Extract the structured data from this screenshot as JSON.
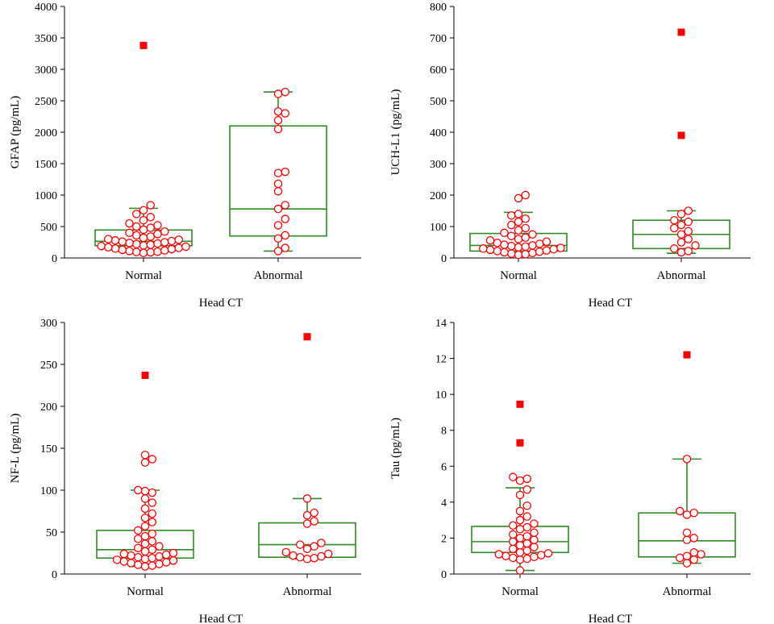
{
  "colors": {
    "box": "#2e8b22",
    "point": "#ff0000",
    "outlier": "#ff0000",
    "axis": "#000000"
  },
  "chart_data": [
    {
      "type": "box",
      "title": "",
      "xlabel": "Head CT",
      "ylabel": "GFAP (pg/mL)",
      "ylim": [
        0,
        4000
      ],
      "yticks": [
        0,
        500,
        1000,
        1500,
        2000,
        2500,
        3000,
        3500,
        4000
      ],
      "categories": [
        "Normal",
        "Abnormal"
      ],
      "series": [
        {
          "name": "Normal",
          "box": {
            "whisker_low": 80,
            "q1": 195,
            "median": 265,
            "q3": 445,
            "whisker_high": 790
          },
          "points": [
            80,
            90,
            95,
            100,
            110,
            120,
            130,
            140,
            150,
            160,
            170,
            180,
            190,
            200,
            210,
            220,
            230,
            240,
            250,
            260,
            270,
            280,
            290,
            300,
            320,
            340,
            360,
            380,
            400,
            420,
            450,
            480,
            500,
            520,
            550,
            600,
            650,
            700,
            760,
            840
          ],
          "outliers": [
            3380
          ]
        },
        {
          "name": "Abnormal",
          "box": {
            "whisker_low": 110,
            "q1": 350,
            "median": 780,
            "q3": 2100,
            "whisker_high": 2640
          },
          "points": [
            110,
            160,
            310,
            360,
            520,
            620,
            780,
            840,
            1060,
            1180,
            1350,
            1370,
            2050,
            2190,
            2300,
            2330,
            2610,
            2640
          ],
          "outliers": []
        }
      ]
    },
    {
      "type": "box",
      "title": "",
      "xlabel": "Head CT",
      "ylabel": "UCH-L1 (pg/mL)",
      "ylim": [
        0,
        800
      ],
      "yticks": [
        0,
        100,
        200,
        300,
        400,
        500,
        600,
        700,
        800
      ],
      "categories": [
        "Normal",
        "Abnormal"
      ],
      "series": [
        {
          "name": "Normal",
          "box": {
            "whisker_low": 10,
            "q1": 22,
            "median": 40,
            "q3": 78,
            "whisker_high": 145
          },
          "points": [
            10,
            12,
            14,
            16,
            18,
            20,
            22,
            24,
            26,
            28,
            30,
            32,
            34,
            36,
            38,
            40,
            42,
            45,
            48,
            52,
            56,
            60,
            65,
            70,
            75,
            80,
            88,
            95,
            105,
            115,
            125,
            135,
            140,
            190,
            200
          ],
          "outliers": []
        },
        {
          "name": "Abnormal",
          "box": {
            "whisker_low": 15,
            "q1": 30,
            "median": 75,
            "q3": 120,
            "whisker_high": 150
          },
          "points": [
            18,
            22,
            30,
            40,
            50,
            60,
            75,
            85,
            95,
            105,
            115,
            120,
            140,
            150
          ],
          "outliers": [
            390,
            718
          ]
        }
      ]
    },
    {
      "type": "box",
      "title": "",
      "xlabel": "Head CT",
      "ylabel": "NF-L (pg/mL)",
      "ylim": [
        0,
        300
      ],
      "yticks": [
        0,
        50,
        100,
        150,
        200,
        250,
        300
      ],
      "categories": [
        "Normal",
        "Abnormal"
      ],
      "series": [
        {
          "name": "Normal",
          "box": {
            "whisker_low": 9,
            "q1": 19,
            "median": 29,
            "q3": 52,
            "whisker_high": 100
          },
          "points": [
            9,
            10,
            11,
            12,
            13,
            14,
            15,
            16,
            17,
            18,
            19,
            20,
            21,
            22,
            23,
            24,
            25,
            27,
            29,
            31,
            33,
            36,
            39,
            42,
            45,
            48,
            52,
            57,
            62,
            67,
            72,
            78,
            85,
            90,
            97,
            99,
            100,
            133,
            137,
            142
          ],
          "outliers": [
            237
          ]
        },
        {
          "name": "Abnormal",
          "box": {
            "whisker_low": 18,
            "q1": 20,
            "median": 35,
            "q3": 61,
            "whisker_high": 90
          },
          "points": [
            18,
            19,
            20,
            21,
            22,
            24,
            26,
            30,
            33,
            35,
            37,
            60,
            63,
            70,
            73,
            90
          ],
          "outliers": [
            283
          ]
        }
      ]
    },
    {
      "type": "box",
      "title": "",
      "xlabel": "Head CT",
      "ylabel": "Tau (pg/mL)",
      "ylim": [
        0,
        14
      ],
      "yticks": [
        0,
        2,
        4,
        6,
        8,
        10,
        12,
        14
      ],
      "categories": [
        "Normal",
        "Abnormal"
      ],
      "series": [
        {
          "name": "Normal",
          "box": {
            "whisker_low": 0.2,
            "q1": 1.2,
            "median": 1.8,
            "q3": 2.65,
            "whisker_high": 4.8
          },
          "points": [
            0.2,
            0.8,
            0.85,
            0.9,
            0.95,
            1.0,
            1.05,
            1.1,
            1.15,
            1.2,
            1.3,
            1.4,
            1.5,
            1.6,
            1.7,
            1.8,
            1.9,
            2.0,
            2.1,
            2.2,
            2.3,
            2.5,
            2.6,
            2.7,
            2.8,
            3.0,
            3.2,
            3.5,
            3.8,
            4.4,
            4.7,
            5.2,
            5.3,
            5.4
          ],
          "outliers": [
            7.3,
            9.45
          ]
        },
        {
          "name": "Abnormal",
          "box": {
            "whisker_low": 0.6,
            "q1": 0.95,
            "median": 1.85,
            "q3": 3.4,
            "whisker_high": 6.4
          },
          "points": [
            0.6,
            0.8,
            0.9,
            1.0,
            1.1,
            1.2,
            1.9,
            2.0,
            2.3,
            3.3,
            3.4,
            3.5,
            6.4
          ],
          "outliers": [
            12.2
          ]
        }
      ]
    }
  ]
}
